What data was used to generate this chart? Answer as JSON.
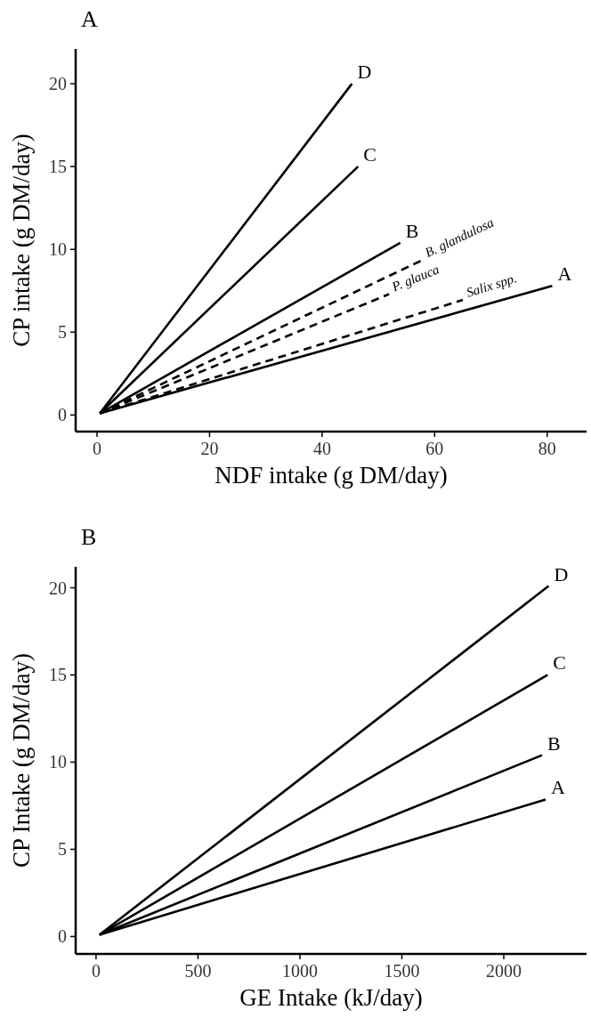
{
  "chart_data": [
    {
      "type": "line",
      "title": "A",
      "xlabel": "NDF intake (g DM/day)",
      "ylabel": "CP intake (g DM/day)",
      "xlim": [
        -3.8,
        87
      ],
      "ylim": [
        -1,
        22.1
      ],
      "xticks": [
        0,
        20,
        40,
        60,
        80
      ],
      "yticks": [
        0,
        5,
        10,
        15,
        20
      ],
      "series": [
        {
          "name": "D",
          "color": "#000000",
          "line_style": "solid",
          "x": [
            0.5,
            45.3
          ],
          "values": [
            0.1,
            20
          ]
        },
        {
          "name": "C",
          "color": "#000000",
          "line_style": "solid",
          "x": [
            0.5,
            46.4
          ],
          "values": [
            0.1,
            15
          ]
        },
        {
          "name": "B",
          "color": "#000000",
          "line_style": "solid",
          "x": [
            0.5,
            53.9
          ],
          "values": [
            0.1,
            10.4
          ]
        },
        {
          "name": "A",
          "color": "#000000",
          "line_style": "solid",
          "x": [
            0.5,
            80.9
          ],
          "values": [
            0.1,
            7.8
          ]
        },
        {
          "name": "B. glandulosa",
          "color": "#000000",
          "line_style": "dashed",
          "x": [
            0.5,
            57.8
          ],
          "values": [
            0.1,
            9.35
          ]
        },
        {
          "name": "P. glauca",
          "color": "#000000",
          "line_style": "dashed",
          "x": [
            0.5,
            51.9
          ],
          "values": [
            0.1,
            7.3
          ]
        },
        {
          "name": "Salix spp.",
          "color": "#000000",
          "line_style": "dashed",
          "x": [
            0.5,
            65
          ],
          "values": [
            0.1,
            6.95
          ]
        }
      ]
    },
    {
      "type": "line",
      "title": "B",
      "xlabel": "GE Intake (kJ/day)",
      "ylabel": "CP Intake (g DM/day)",
      "xlim": [
        -100,
        2406
      ],
      "ylim": [
        -1,
        21.2
      ],
      "xticks": [
        0,
        500,
        1000,
        1500,
        2000
      ],
      "yticks": [
        0,
        5,
        10,
        15,
        20
      ],
      "series": [
        {
          "name": "D",
          "color": "#000000",
          "line_style": "solid",
          "x": [
            17,
            2220
          ],
          "values": [
            0.1,
            20.1
          ]
        },
        {
          "name": "C",
          "color": "#000000",
          "line_style": "solid",
          "x": [
            17,
            2215
          ],
          "values": [
            0.1,
            15
          ]
        },
        {
          "name": "B",
          "color": "#000000",
          "line_style": "solid",
          "x": [
            17,
            2188
          ],
          "values": [
            0.1,
            10.4
          ]
        },
        {
          "name": "A",
          "color": "#000000",
          "line_style": "solid",
          "x": [
            17,
            2205
          ],
          "values": [
            0.1,
            7.86
          ]
        }
      ]
    }
  ]
}
